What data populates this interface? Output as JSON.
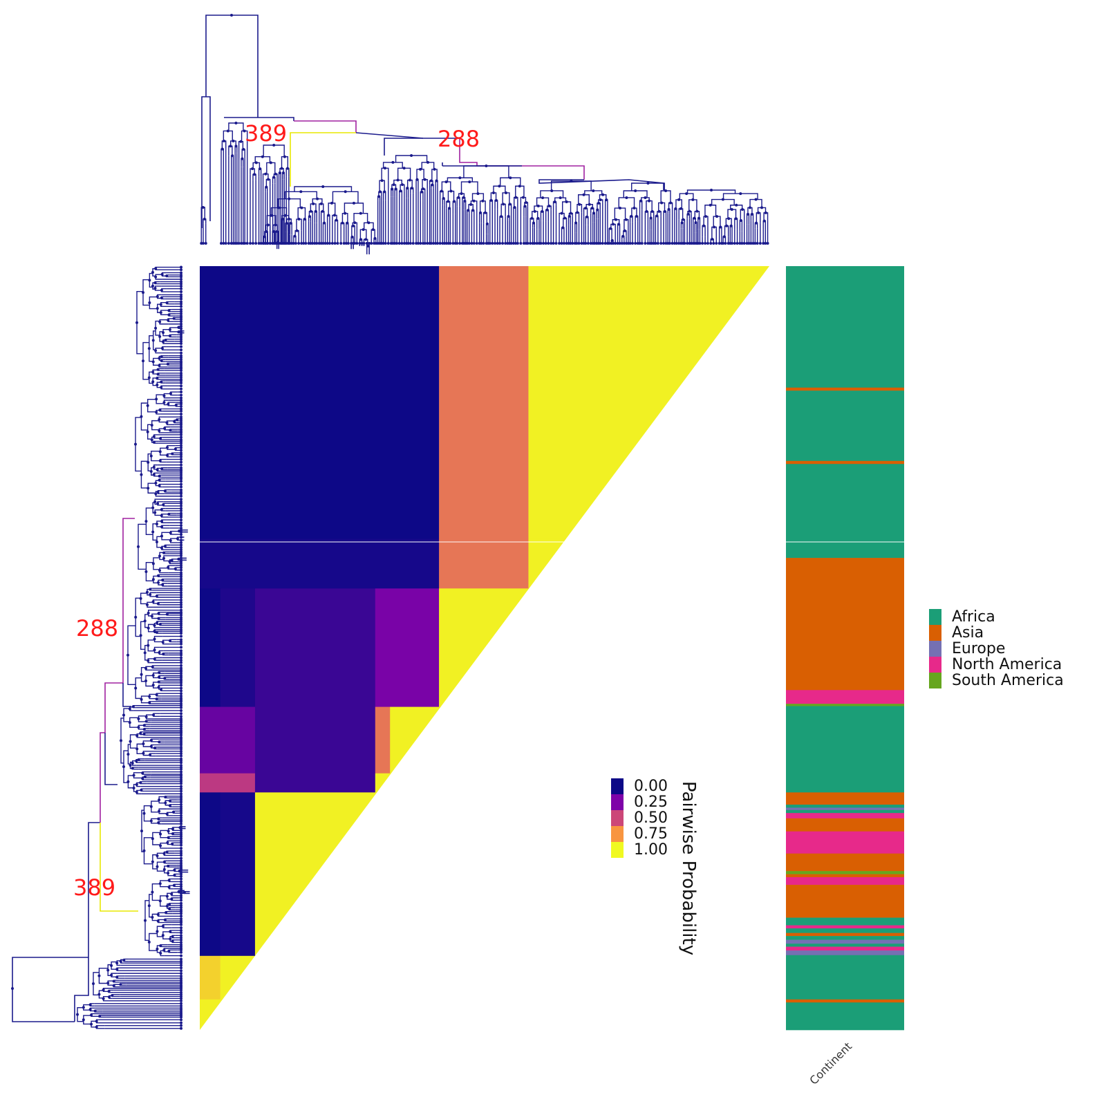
{
  "chart_data": [
    {
      "type": "heatmap",
      "title": "",
      "legend_title": "Pairwise Probability",
      "color_scale": {
        "ticks": [
          "0.00",
          "0.25",
          "0.50",
          "0.75",
          "1.00"
        ],
        "colors": [
          "#0d0887",
          "#7e03a8",
          "#cc4778",
          "#f89540",
          "#f0f921"
        ]
      },
      "tree_node_labels": [
        "389",
        "288"
      ],
      "blocks": [
        {
          "row": [
            0,
            0.357
          ],
          "col": [
            0,
            0.42
          ],
          "value": 0.0
        },
        {
          "row": [
            0,
            0.357
          ],
          "col": [
            0.42,
            0.577
          ],
          "value": 0.65
        },
        {
          "row": [
            0,
            0.357
          ],
          "col": [
            0.577,
            1.0
          ],
          "value": 0.98
        },
        {
          "row": [
            0.357,
            0.422
          ],
          "col": [
            0,
            0.42
          ],
          "value": 0.02
        },
        {
          "row": [
            0.357,
            0.422
          ],
          "col": [
            0.42,
            0.577
          ],
          "value": 0.65
        },
        {
          "row": [
            0.357,
            0.422
          ],
          "col": [
            0.577,
            1.0
          ],
          "value": 0.98
        },
        {
          "row": [
            0.422,
            0.577
          ],
          "col": [
            0,
            0.036
          ],
          "value": 0.0
        },
        {
          "row": [
            0.422,
            0.577
          ],
          "col": [
            0.036,
            0.097
          ],
          "value": 0.04
        },
        {
          "row": [
            0.422,
            0.577
          ],
          "col": [
            0.097,
            0.308
          ],
          "value": 0.1
        },
        {
          "row": [
            0.422,
            0.577
          ],
          "col": [
            0.308,
            0.42
          ],
          "value": 0.24
        },
        {
          "row": [
            0.422,
            0.577
          ],
          "col": [
            0.42,
            1.0
          ],
          "value": 0.98
        },
        {
          "row": [
            0.577,
            0.664
          ],
          "col": [
            0,
            0.097
          ],
          "value": 0.2
        },
        {
          "row": [
            0.577,
            0.664
          ],
          "col": [
            0.097,
            0.308
          ],
          "value": 0.1
        },
        {
          "row": [
            0.577,
            0.664
          ],
          "col": [
            0.308,
            0.334
          ],
          "value": 0.65
        },
        {
          "row": [
            0.577,
            0.664
          ],
          "col": [
            0.334,
            1.0
          ],
          "value": 0.98
        },
        {
          "row": [
            0.664,
            0.689
          ],
          "col": [
            0,
            0.097
          ],
          "value": 0.45
        },
        {
          "row": [
            0.664,
            0.689
          ],
          "col": [
            0.097,
            0.308
          ],
          "value": 0.1
        },
        {
          "row": [
            0.664,
            0.689
          ],
          "col": [
            0.308,
            1.0
          ],
          "value": 0.98
        },
        {
          "row": [
            0.689,
            0.903
          ],
          "col": [
            0,
            0.036
          ],
          "value": 0.0
        },
        {
          "row": [
            0.689,
            0.903
          ],
          "col": [
            0.036,
            0.097
          ],
          "value": 0.02
        },
        {
          "row": [
            0.689,
            0.903
          ],
          "col": [
            0.097,
            1.0
          ],
          "value": 0.98
        },
        {
          "row": [
            0.903,
            0.96
          ],
          "col": [
            0,
            0.036
          ],
          "value": 0.9
        },
        {
          "row": [
            0.903,
            0.96
          ],
          "col": [
            0.036,
            1.0
          ],
          "value": 0.98
        },
        {
          "row": [
            0.96,
            1.0
          ],
          "col": [
            0,
            1.0
          ],
          "value": 0.98
        }
      ]
    },
    {
      "type": "heatmap",
      "xlabel": "Continent",
      "legend": {
        "labels": [
          "Africa",
          "Asia",
          "Europe",
          "North America",
          "South America"
        ],
        "colors": [
          "#1b9e77",
          "#d95f02",
          "#7570b3",
          "#e7298a",
          "#66a61e"
        ]
      },
      "segments": [
        {
          "from": 0.0,
          "to": 0.159,
          "continent": "Africa"
        },
        {
          "from": 0.159,
          "to": 0.163,
          "continent": "Asia"
        },
        {
          "from": 0.163,
          "to": 0.255,
          "continent": "Africa"
        },
        {
          "from": 0.255,
          "to": 0.259,
          "continent": "Asia"
        },
        {
          "from": 0.259,
          "to": 0.382,
          "continent": "Africa"
        },
        {
          "from": 0.382,
          "to": 0.555,
          "continent": "Asia"
        },
        {
          "from": 0.555,
          "to": 0.573,
          "continent": "North America"
        },
        {
          "from": 0.573,
          "to": 0.576,
          "continent": "South America"
        },
        {
          "from": 0.576,
          "to": 0.689,
          "continent": "Africa"
        },
        {
          "from": 0.689,
          "to": 0.705,
          "continent": "Asia"
        },
        {
          "from": 0.705,
          "to": 0.709,
          "continent": "Africa"
        },
        {
          "from": 0.709,
          "to": 0.712,
          "continent": "Europe"
        },
        {
          "from": 0.712,
          "to": 0.716,
          "continent": "Africa"
        },
        {
          "from": 0.716,
          "to": 0.723,
          "continent": "North America"
        },
        {
          "from": 0.723,
          "to": 0.74,
          "continent": "Asia"
        },
        {
          "from": 0.74,
          "to": 0.769,
          "continent": "North America"
        },
        {
          "from": 0.769,
          "to": 0.792,
          "continent": "Asia"
        },
        {
          "from": 0.792,
          "to": 0.796,
          "continent": "South America"
        },
        {
          "from": 0.796,
          "to": 0.8,
          "continent": "Asia"
        },
        {
          "from": 0.8,
          "to": 0.81,
          "continent": "North America"
        },
        {
          "from": 0.81,
          "to": 0.853,
          "continent": "Asia"
        },
        {
          "from": 0.853,
          "to": 0.863,
          "continent": "Africa"
        },
        {
          "from": 0.863,
          "to": 0.867,
          "continent": "North America"
        },
        {
          "from": 0.867,
          "to": 0.873,
          "continent": "Africa"
        },
        {
          "from": 0.873,
          "to": 0.877,
          "continent": "Asia"
        },
        {
          "from": 0.877,
          "to": 0.882,
          "continent": "Africa"
        },
        {
          "from": 0.882,
          "to": 0.887,
          "continent": "Europe"
        },
        {
          "from": 0.887,
          "to": 0.891,
          "continent": "Africa"
        },
        {
          "from": 0.891,
          "to": 0.896,
          "continent": "North America"
        },
        {
          "from": 0.896,
          "to": 0.902,
          "continent": "Europe"
        },
        {
          "from": 0.902,
          "to": 0.96,
          "continent": "Africa"
        },
        {
          "from": 0.96,
          "to": 0.964,
          "continent": "Asia"
        },
        {
          "from": 0.964,
          "to": 1.0,
          "continent": "Africa"
        }
      ]
    }
  ]
}
